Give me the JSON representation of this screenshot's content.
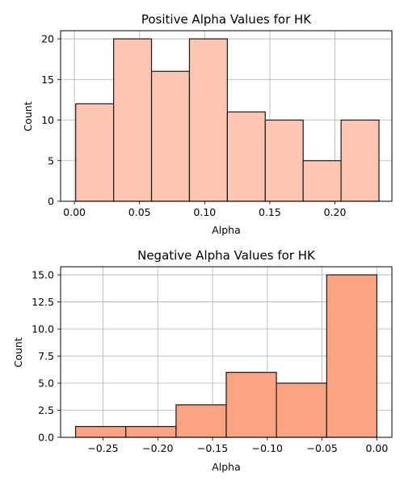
{
  "chart_data": [
    {
      "type": "bar",
      "title": "Positive Alpha Values for HK",
      "xlabel": "Alpha",
      "ylabel": "Count",
      "bar_color": "#fcc6b2",
      "edge_color": "#1a1a1a",
      "grid": true,
      "xlim": [
        -0.0106,
        0.2437
      ],
      "ylim": [
        0,
        21
      ],
      "xticks": [
        0.0,
        0.05,
        0.1,
        0.15,
        0.2
      ],
      "xtick_labels": [
        "0.00",
        "0.05",
        "0.10",
        "0.15",
        "0.20"
      ],
      "yticks": [
        0,
        5,
        10,
        15,
        20
      ],
      "ytick_labels": [
        "0",
        "5",
        "10",
        "15",
        "20"
      ],
      "bins": [
        {
          "x0": 0.001,
          "x1": 0.0301,
          "value": 12
        },
        {
          "x0": 0.0301,
          "x1": 0.0592,
          "value": 20
        },
        {
          "x0": 0.0592,
          "x1": 0.0883,
          "value": 16
        },
        {
          "x0": 0.0883,
          "x1": 0.1174,
          "value": 20
        },
        {
          "x0": 0.1174,
          "x1": 0.1465,
          "value": 11
        },
        {
          "x0": 0.1465,
          "x1": 0.1756,
          "value": 10
        },
        {
          "x0": 0.1756,
          "x1": 0.2047,
          "value": 5
        },
        {
          "x0": 0.2047,
          "x1": 0.2338,
          "value": 10
        }
      ]
    },
    {
      "type": "bar",
      "title": "Negative Alpha Values for HK",
      "xlabel": "Alpha",
      "ylabel": "Count",
      "bar_color": "#fca482",
      "edge_color": "#1a1a1a",
      "grid": true,
      "xlim": [
        -0.2887,
        0.0137
      ],
      "ylim": [
        0,
        15.75
      ],
      "xticks": [
        -0.25,
        -0.2,
        -0.15,
        -0.1,
        -0.05,
        0.0
      ],
      "xtick_labels": [
        "−0.25",
        "−0.20",
        "−0.15",
        "−0.10",
        "−0.05",
        "0.00"
      ],
      "yticks": [
        0,
        2.5,
        5.0,
        7.5,
        10.0,
        12.5,
        15.0
      ],
      "ytick_labels": [
        "0.0",
        "2.5",
        "5.0",
        "7.5",
        "10.0",
        "12.5",
        "15.0"
      ],
      "bins": [
        {
          "x0": -0.275,
          "x1": -0.2292,
          "value": 1
        },
        {
          "x0": -0.2292,
          "x1": -0.1833,
          "value": 1
        },
        {
          "x0": -0.1833,
          "x1": -0.1375,
          "value": 3
        },
        {
          "x0": -0.1375,
          "x1": -0.0917,
          "value": 6
        },
        {
          "x0": -0.0917,
          "x1": -0.0458,
          "value": 5
        },
        {
          "x0": -0.0458,
          "x1": 0.0,
          "value": 15
        }
      ]
    }
  ]
}
